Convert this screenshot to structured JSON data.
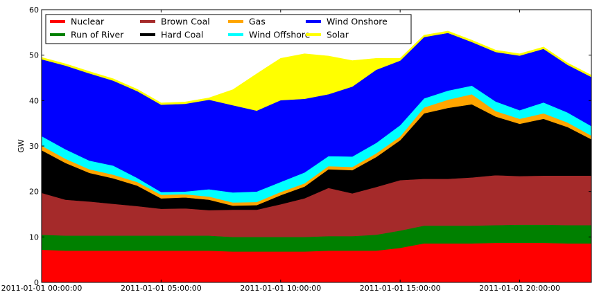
{
  "chart_data": {
    "type": "area",
    "stacked": true,
    "ylabel": "GW",
    "xlabel": "",
    "ylim": [
      0,
      60
    ],
    "xlim": [
      0,
      23
    ],
    "yticks": [
      0,
      10,
      20,
      30,
      40,
      50,
      60
    ],
    "xticks": [
      {
        "x": 0,
        "label": "2011-01-01 00:00:00"
      },
      {
        "x": 5,
        "label": "2011-01-01 05:00:00"
      },
      {
        "x": 10,
        "label": "2011-01-01 10:00:00"
      },
      {
        "x": 15,
        "label": "2011-01-01 15:00:00"
      },
      {
        "x": 20,
        "label": "2011-01-01 20:00:00"
      }
    ],
    "x": [
      0,
      1,
      2,
      3,
      4,
      5,
      6,
      7,
      8,
      9,
      10,
      11,
      12,
      13,
      14,
      15,
      16,
      17,
      18,
      19,
      20,
      21,
      22,
      23
    ],
    "legend_position": "upper-left",
    "legend_columns": 4,
    "series": [
      {
        "name": "Nuclear",
        "color": "#ff0000",
        "values": [
          7.2,
          7.0,
          7.0,
          7.0,
          7.0,
          7.0,
          7.0,
          7.0,
          6.8,
          6.8,
          6.8,
          6.8,
          7.0,
          7.0,
          7.0,
          7.6,
          8.6,
          8.6,
          8.6,
          8.7,
          8.7,
          8.7,
          8.6,
          8.6
        ]
      },
      {
        "name": "Run of River",
        "color": "#008000",
        "values": [
          3.3,
          3.3,
          3.3,
          3.3,
          3.3,
          3.3,
          3.3,
          3.3,
          3.2,
          3.2,
          3.2,
          3.2,
          3.2,
          3.2,
          3.5,
          3.8,
          3.9,
          3.9,
          3.9,
          3.9,
          4.0,
          4.0,
          4.0,
          4.0
        ]
      },
      {
        "name": "Brown Coal",
        "color": "#a52a2a",
        "values": [
          9.2,
          7.9,
          7.5,
          7.0,
          6.5,
          5.9,
          6.0,
          5.6,
          6.0,
          6.0,
          7.2,
          8.5,
          10.6,
          9.4,
          10.5,
          11.1,
          10.3,
          10.3,
          10.6,
          11.0,
          10.7,
          10.8,
          10.9,
          10.9
        ]
      },
      {
        "name": "Hard Coal",
        "color": "#000000",
        "values": [
          9.4,
          8.1,
          6.3,
          5.6,
          4.5,
          2.3,
          2.4,
          2.3,
          0.9,
          1.0,
          2.0,
          2.6,
          4.1,
          5.1,
          6.6,
          8.8,
          14.4,
          15.6,
          16.1,
          12.9,
          11.5,
          12.5,
          10.7,
          8.0
        ]
      },
      {
        "name": "Gas",
        "color": "#ffa500",
        "values": [
          1.0,
          0.9,
          0.8,
          0.8,
          0.8,
          0.8,
          0.7,
          0.7,
          0.7,
          0.7,
          0.7,
          0.7,
          0.7,
          0.7,
          0.8,
          0.8,
          1.3,
          1.8,
          2.2,
          1.2,
          1.1,
          1.2,
          1.0,
          0.8
        ]
      },
      {
        "name": "Wind Offshore",
        "color": "#00ffff",
        "values": [
          2.1,
          2.1,
          1.9,
          2.0,
          0.9,
          0.6,
          0.6,
          1.6,
          2.2,
          2.3,
          2.2,
          2.4,
          2.2,
          2.3,
          2.3,
          2.5,
          2.0,
          2.0,
          1.9,
          2.1,
          1.9,
          2.4,
          2.2,
          2.1
        ]
      },
      {
        "name": "Wind Onshore",
        "color": "#0000ff",
        "values": [
          16.9,
          18.4,
          19.2,
          18.7,
          19.1,
          19.2,
          19.3,
          19.7,
          19.2,
          17.8,
          18.0,
          16.2,
          13.6,
          15.4,
          16.1,
          14.2,
          13.5,
          12.7,
          9.6,
          10.9,
          12.0,
          11.8,
          10.5,
          10.8
        ]
      },
      {
        "name": "Solar",
        "color": "#ffff00",
        "values": [
          0.4,
          0.4,
          0.4,
          0.4,
          0.4,
          0.4,
          0.4,
          0.4,
          3.4,
          8.1,
          9.2,
          9.9,
          8.4,
          5.7,
          2.5,
          0.5,
          0.4,
          0.4,
          0.4,
          0.4,
          0.4,
          0.4,
          0.4,
          0.4
        ]
      }
    ]
  }
}
